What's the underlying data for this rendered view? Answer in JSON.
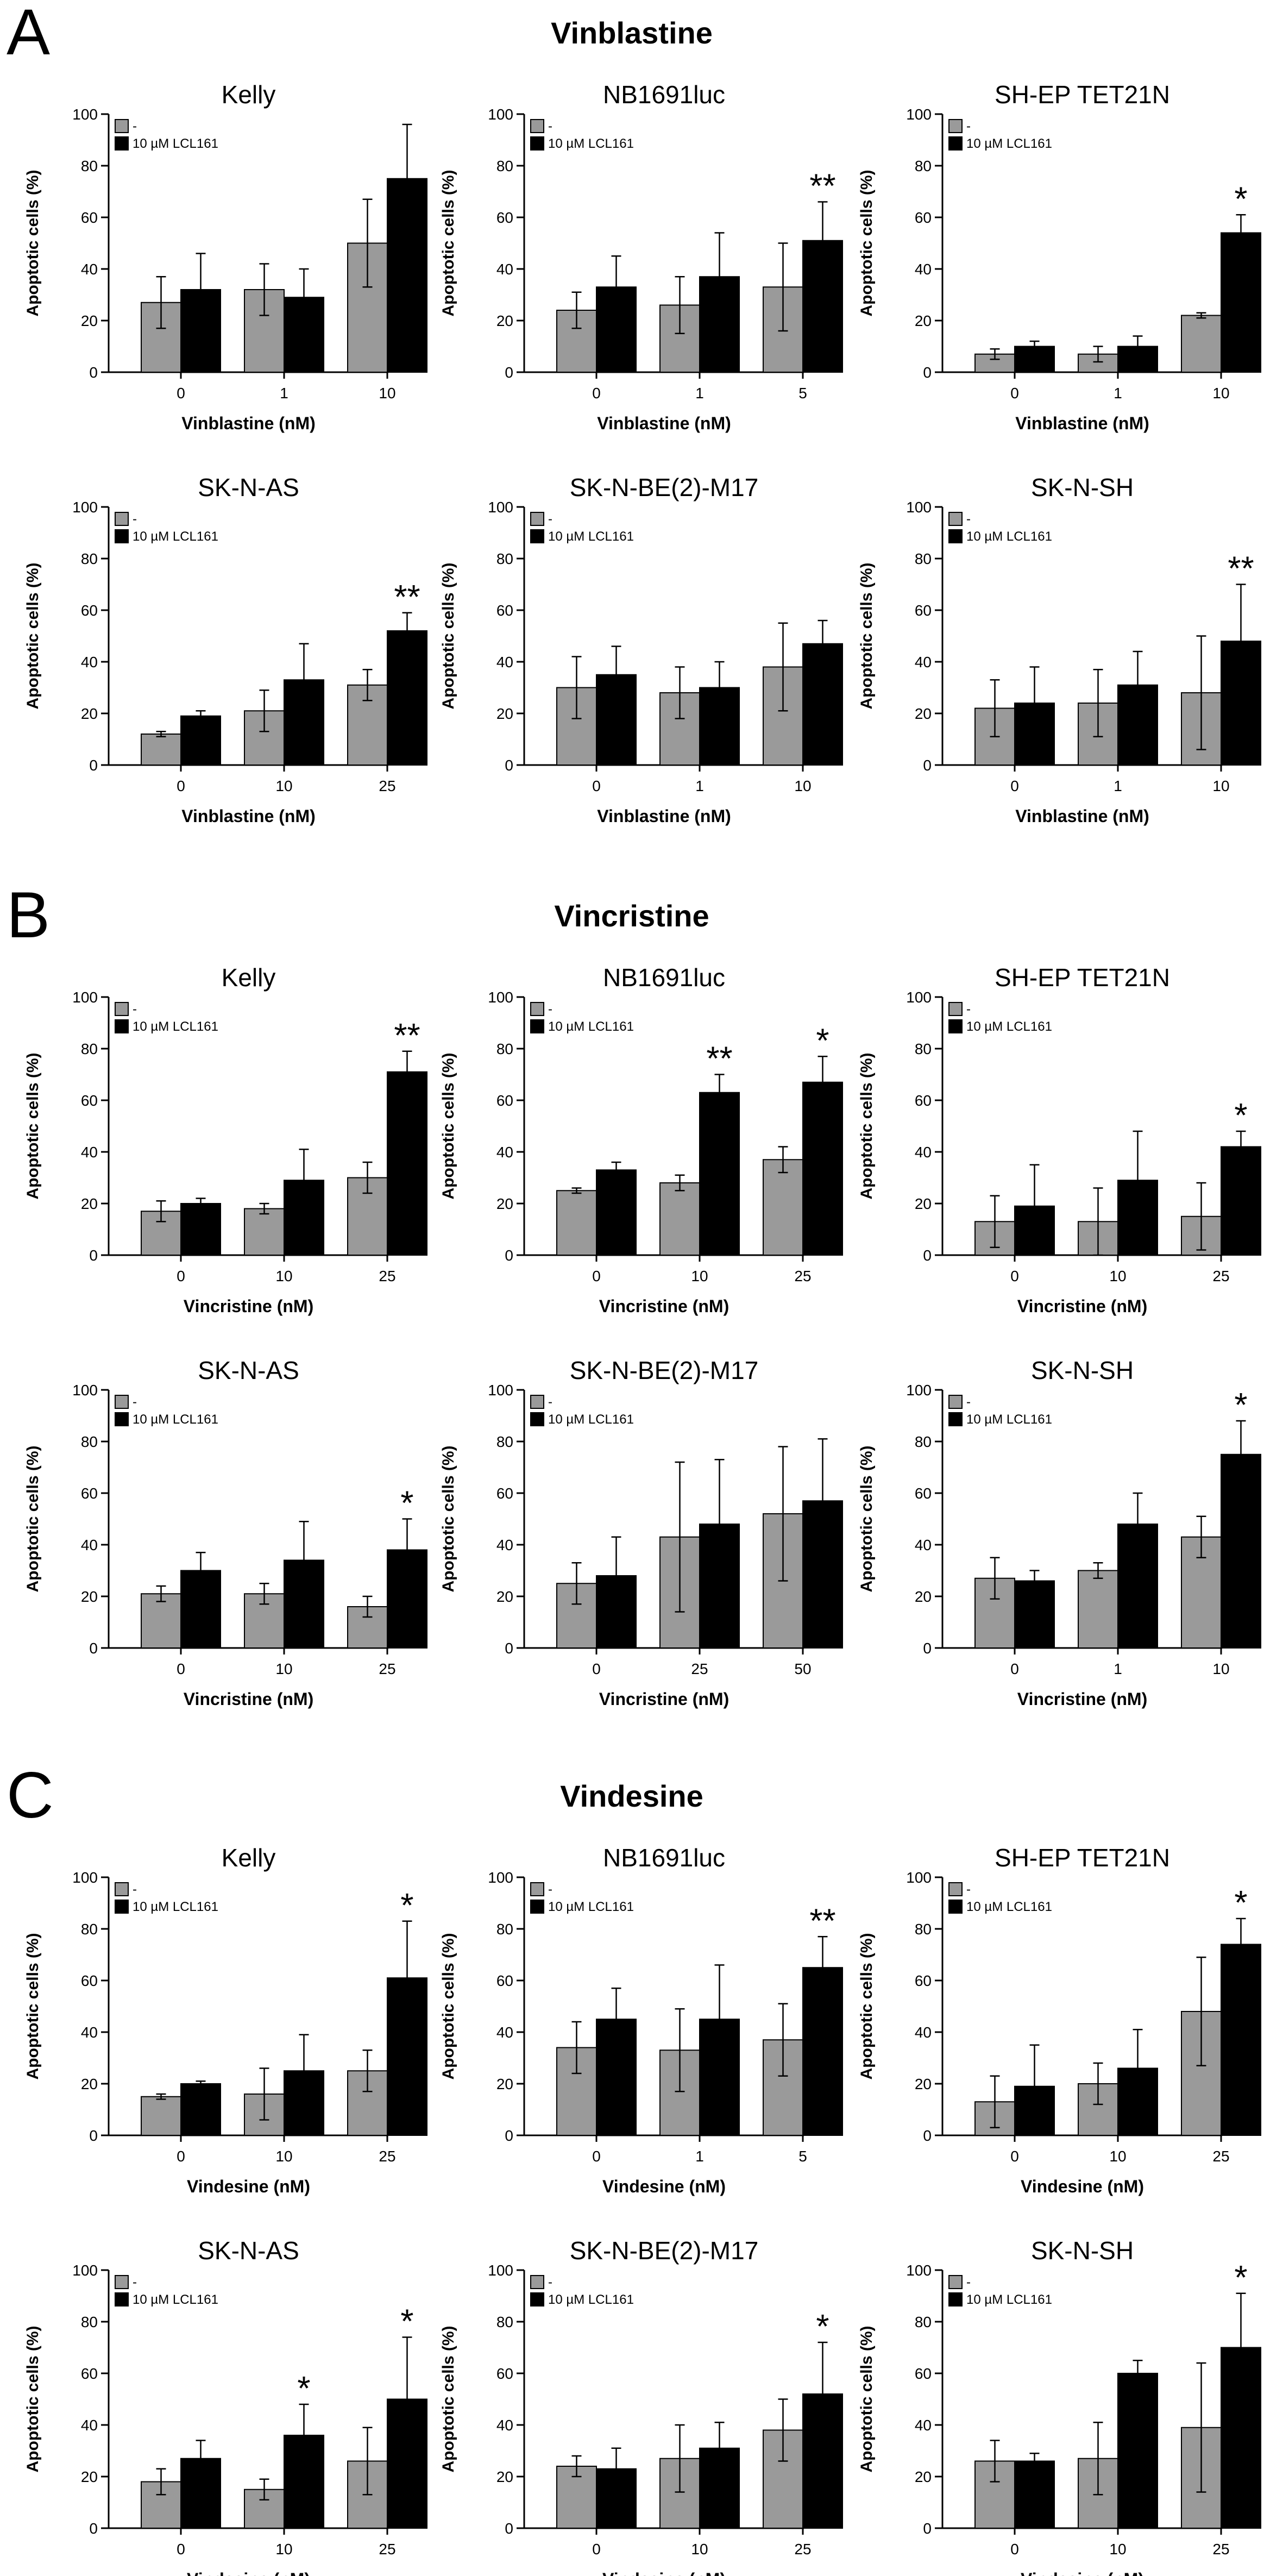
{
  "figure": {
    "sections": [
      {
        "letter": "A",
        "drug": "Vinblastine"
      },
      {
        "letter": "B",
        "drug": "Vincristine"
      },
      {
        "letter": "C",
        "drug": "Vindesine"
      }
    ],
    "legend": {
      "control_label": "-",
      "treated_label": "10 µM LCL161"
    },
    "colors": {
      "control": "#9a9a9a",
      "treated": "#000000"
    }
  },
  "chart_data": [
    {
      "type": "bar",
      "section": "A",
      "title": "Kelly",
      "xlabel": "Vinblastine (nM)",
      "ylabel": "Apoptotic cells (%)",
      "ylim": [
        0,
        100
      ],
      "yticks": [
        0,
        20,
        40,
        60,
        80,
        100
      ],
      "categories": [
        "0",
        "1",
        "10"
      ],
      "series": [
        {
          "name": "-",
          "values": [
            27,
            32,
            50
          ],
          "errors": [
            10,
            10,
            17
          ]
        },
        {
          "name": "10 µM LCL161",
          "values": [
            32,
            29,
            75
          ],
          "errors": [
            14,
            11,
            21
          ]
        }
      ],
      "significance": [
        "",
        "",
        ""
      ]
    },
    {
      "type": "bar",
      "section": "A",
      "title": "NB1691luc",
      "xlabel": "Vinblastine (nM)",
      "ylabel": "Apoptotic cells (%)",
      "ylim": [
        0,
        100
      ],
      "yticks": [
        0,
        20,
        40,
        60,
        80,
        100
      ],
      "categories": [
        "0",
        "1",
        "5"
      ],
      "series": [
        {
          "name": "-",
          "values": [
            24,
            26,
            33
          ],
          "errors": [
            7,
            11,
            17
          ]
        },
        {
          "name": "10 µM LCL161",
          "values": [
            33,
            37,
            51
          ],
          "errors": [
            12,
            17,
            15
          ]
        }
      ],
      "significance": [
        "",
        "",
        "**"
      ]
    },
    {
      "type": "bar",
      "section": "A",
      "title": "SH-EP TET21N",
      "xlabel": "Vinblastine (nM)",
      "ylabel": "Apoptotic cells (%)",
      "ylim": [
        0,
        100
      ],
      "yticks": [
        0,
        20,
        40,
        60,
        80,
        100
      ],
      "categories": [
        "0",
        "1",
        "10"
      ],
      "series": [
        {
          "name": "-",
          "values": [
            7,
            7,
            22
          ],
          "errors": [
            2,
            3,
            1
          ]
        },
        {
          "name": "10 µM LCL161",
          "values": [
            10,
            10,
            54
          ],
          "errors": [
            2,
            4,
            7
          ]
        }
      ],
      "significance": [
        "",
        "",
        "*"
      ]
    },
    {
      "type": "bar",
      "section": "A",
      "title": "SK-N-AS",
      "xlabel": "Vinblastine (nM)",
      "ylabel": "Apoptotic cells (%)",
      "ylim": [
        0,
        100
      ],
      "yticks": [
        0,
        20,
        40,
        60,
        80,
        100
      ],
      "categories": [
        "0",
        "10",
        "25"
      ],
      "series": [
        {
          "name": "-",
          "values": [
            12,
            21,
            31
          ],
          "errors": [
            1,
            8,
            6
          ]
        },
        {
          "name": "10 µM LCL161",
          "values": [
            19,
            33,
            52
          ],
          "errors": [
            2,
            14,
            7
          ]
        }
      ],
      "significance": [
        "",
        "",
        "**"
      ]
    },
    {
      "type": "bar",
      "section": "A",
      "title": "SK-N-BE(2)-M17",
      "xlabel": "Vinblastine (nM)",
      "ylabel": "Apoptotic cells (%)",
      "ylim": [
        0,
        100
      ],
      "yticks": [
        0,
        20,
        40,
        60,
        80,
        100
      ],
      "categories": [
        "0",
        "1",
        "10"
      ],
      "series": [
        {
          "name": "-",
          "values": [
            30,
            28,
            38
          ],
          "errors": [
            12,
            10,
            17
          ]
        },
        {
          "name": "10 µM LCL161",
          "values": [
            35,
            30,
            47
          ],
          "errors": [
            11,
            10,
            9
          ]
        }
      ],
      "significance": [
        "",
        "",
        ""
      ]
    },
    {
      "type": "bar",
      "section": "A",
      "title": "SK-N-SH",
      "xlabel": "Vinblastine (nM)",
      "ylabel": "Apoptotic cells (%)",
      "ylim": [
        0,
        100
      ],
      "yticks": [
        0,
        20,
        40,
        60,
        80,
        100
      ],
      "categories": [
        "0",
        "1",
        "10"
      ],
      "series": [
        {
          "name": "-",
          "values": [
            22,
            24,
            28
          ],
          "errors": [
            11,
            13,
            22
          ]
        },
        {
          "name": "10 µM LCL161",
          "values": [
            24,
            31,
            48
          ],
          "errors": [
            14,
            13,
            22
          ]
        }
      ],
      "significance": [
        "",
        "",
        "**"
      ]
    },
    {
      "type": "bar",
      "section": "B",
      "title": "Kelly",
      "xlabel": "Vincristine (nM)",
      "ylabel": "Apoptotic cells (%)",
      "ylim": [
        0,
        100
      ],
      "yticks": [
        0,
        20,
        40,
        60,
        80,
        100
      ],
      "categories": [
        "0",
        "10",
        "25"
      ],
      "series": [
        {
          "name": "-",
          "values": [
            17,
            18,
            30
          ],
          "errors": [
            4,
            2,
            6
          ]
        },
        {
          "name": "10 µM LCL161",
          "values": [
            20,
            29,
            71
          ],
          "errors": [
            2,
            12,
            8
          ]
        }
      ],
      "significance": [
        "",
        "",
        "**"
      ]
    },
    {
      "type": "bar",
      "section": "B",
      "title": "NB1691luc",
      "xlabel": "Vincristine (nM)",
      "ylabel": "Apoptotic cells (%)",
      "ylim": [
        0,
        100
      ],
      "yticks": [
        0,
        20,
        40,
        60,
        80,
        100
      ],
      "categories": [
        "0",
        "10",
        "25"
      ],
      "series": [
        {
          "name": "-",
          "values": [
            25,
            28,
            37
          ],
          "errors": [
            1,
            3,
            5
          ]
        },
        {
          "name": "10 µM LCL161",
          "values": [
            33,
            63,
            67
          ],
          "errors": [
            3,
            7,
            10
          ]
        }
      ],
      "significance": [
        "",
        "**",
        "*"
      ]
    },
    {
      "type": "bar",
      "section": "B",
      "title": "SH-EP TET21N",
      "xlabel": "Vincristine (nM)",
      "ylabel": "Apoptotic cells (%)",
      "ylim": [
        0,
        100
      ],
      "yticks": [
        0,
        20,
        40,
        60,
        80,
        100
      ],
      "categories": [
        "0",
        "10",
        "25"
      ],
      "series": [
        {
          "name": "-",
          "values": [
            13,
            13,
            15
          ],
          "errors": [
            10,
            13,
            13
          ]
        },
        {
          "name": "10 µM LCL161",
          "values": [
            19,
            29,
            42
          ],
          "errors": [
            16,
            19,
            6
          ]
        }
      ],
      "significance": [
        "",
        "",
        "*"
      ]
    },
    {
      "type": "bar",
      "section": "B",
      "title": "SK-N-AS",
      "xlabel": "Vincristine (nM)",
      "ylabel": "Apoptotic cells (%)",
      "ylim": [
        0,
        100
      ],
      "yticks": [
        0,
        20,
        40,
        60,
        80,
        100
      ],
      "categories": [
        "0",
        "10",
        "25"
      ],
      "series": [
        {
          "name": "-",
          "values": [
            21,
            21,
            16
          ],
          "errors": [
            3,
            4,
            4
          ]
        },
        {
          "name": "10 µM LCL161",
          "values": [
            30,
            34,
            38
          ],
          "errors": [
            7,
            15,
            12
          ]
        }
      ],
      "significance": [
        "",
        "",
        "*"
      ]
    },
    {
      "type": "bar",
      "section": "B",
      "title": "SK-N-BE(2)-M17",
      "xlabel": "Vincristine (nM)",
      "ylabel": "Apoptotic cells (%)",
      "ylim": [
        0,
        100
      ],
      "yticks": [
        0,
        20,
        40,
        60,
        80,
        100
      ],
      "categories": [
        "0",
        "25",
        "50"
      ],
      "series": [
        {
          "name": "-",
          "values": [
            25,
            43,
            52
          ],
          "errors": [
            8,
            29,
            26
          ]
        },
        {
          "name": "10 µM LCL161",
          "values": [
            28,
            48,
            57
          ],
          "errors": [
            15,
            25,
            24
          ]
        }
      ],
      "significance": [
        "",
        "",
        ""
      ]
    },
    {
      "type": "bar",
      "section": "B",
      "title": "SK-N-SH",
      "xlabel": "Vincristine (nM)",
      "ylabel": "Apoptotic cells (%)",
      "ylim": [
        0,
        100
      ],
      "yticks": [
        0,
        20,
        40,
        60,
        80,
        100
      ],
      "categories": [
        "0",
        "1",
        "10"
      ],
      "series": [
        {
          "name": "-",
          "values": [
            27,
            30,
            43
          ],
          "errors": [
            8,
            3,
            8
          ]
        },
        {
          "name": "10 µM LCL161",
          "values": [
            26,
            48,
            75
          ],
          "errors": [
            4,
            12,
            13
          ]
        }
      ],
      "significance": [
        "",
        "",
        "*"
      ]
    },
    {
      "type": "bar",
      "section": "C",
      "title": "Kelly",
      "xlabel": "Vindesine (nM)",
      "ylabel": "Apoptotic cells (%)",
      "ylim": [
        0,
        100
      ],
      "yticks": [
        0,
        20,
        40,
        60,
        80,
        100
      ],
      "categories": [
        "0",
        "10",
        "25"
      ],
      "series": [
        {
          "name": "-",
          "values": [
            15,
            16,
            25
          ],
          "errors": [
            1,
            10,
            8
          ]
        },
        {
          "name": "10 µM LCL161",
          "values": [
            20,
            25,
            61
          ],
          "errors": [
            1,
            14,
            22
          ]
        }
      ],
      "significance": [
        "",
        "",
        "*"
      ]
    },
    {
      "type": "bar",
      "section": "C",
      "title": "NB1691luc",
      "xlabel": "Vindesine (nM)",
      "ylabel": "Apoptotic cells (%)",
      "ylim": [
        0,
        100
      ],
      "yticks": [
        0,
        20,
        40,
        60,
        80,
        100
      ],
      "categories": [
        "0",
        "1",
        "5"
      ],
      "series": [
        {
          "name": "-",
          "values": [
            34,
            33,
            37
          ],
          "errors": [
            10,
            16,
            14
          ]
        },
        {
          "name": "10 µM LCL161",
          "values": [
            45,
            45,
            65
          ],
          "errors": [
            12,
            21,
            12
          ]
        }
      ],
      "significance": [
        "",
        "",
        "**"
      ]
    },
    {
      "type": "bar",
      "section": "C",
      "title": "SH-EP TET21N",
      "xlabel": "Vindesine (nM)",
      "ylabel": "Apoptotic cells (%)",
      "ylim": [
        0,
        100
      ],
      "yticks": [
        0,
        20,
        40,
        60,
        80,
        100
      ],
      "categories": [
        "0",
        "10",
        "25"
      ],
      "series": [
        {
          "name": "-",
          "values": [
            13,
            20,
            48
          ],
          "errors": [
            10,
            8,
            21
          ]
        },
        {
          "name": "10 µM LCL161",
          "values": [
            19,
            26,
            74
          ],
          "errors": [
            16,
            15,
            10
          ]
        }
      ],
      "significance": [
        "",
        "",
        "*"
      ]
    },
    {
      "type": "bar",
      "section": "C",
      "title": "SK-N-AS",
      "xlabel": "Vindesine (nM)",
      "ylabel": "Apoptotic cells (%)",
      "ylim": [
        0,
        100
      ],
      "yticks": [
        0,
        20,
        40,
        60,
        80,
        100
      ],
      "categories": [
        "0",
        "10",
        "25"
      ],
      "series": [
        {
          "name": "-",
          "values": [
            18,
            15,
            26
          ],
          "errors": [
            5,
            4,
            13
          ]
        },
        {
          "name": "10 µM LCL161",
          "values": [
            27,
            36,
            50
          ],
          "errors": [
            7,
            12,
            24
          ]
        }
      ],
      "significance": [
        "",
        "*",
        "*"
      ]
    },
    {
      "type": "bar",
      "section": "C",
      "title": "SK-N-BE(2)-M17",
      "xlabel": "Vindesine (nM)",
      "ylabel": "Apoptotic cells (%)",
      "ylim": [
        0,
        100
      ],
      "yticks": [
        0,
        20,
        40,
        60,
        80,
        100
      ],
      "categories": [
        "0",
        "10",
        "25"
      ],
      "series": [
        {
          "name": "-",
          "values": [
            24,
            27,
            38
          ],
          "errors": [
            4,
            13,
            12
          ]
        },
        {
          "name": "10 µM LCL161",
          "values": [
            23,
            31,
            52
          ],
          "errors": [
            8,
            10,
            20
          ]
        }
      ],
      "significance": [
        "",
        "",
        "*"
      ]
    },
    {
      "type": "bar",
      "section": "C",
      "title": "SK-N-SH",
      "xlabel": "Vindesine (nM)",
      "ylabel": "Apoptotic cells (%)",
      "ylim": [
        0,
        100
      ],
      "yticks": [
        0,
        20,
        40,
        60,
        80,
        100
      ],
      "categories": [
        "0",
        "10",
        "25"
      ],
      "series": [
        {
          "name": "-",
          "values": [
            26,
            27,
            39
          ],
          "errors": [
            8,
            14,
            25
          ]
        },
        {
          "name": "10 µM LCL161",
          "values": [
            26,
            60,
            70
          ],
          "errors": [
            3,
            5,
            21
          ]
        }
      ],
      "significance": [
        "",
        "",
        "*"
      ]
    }
  ]
}
